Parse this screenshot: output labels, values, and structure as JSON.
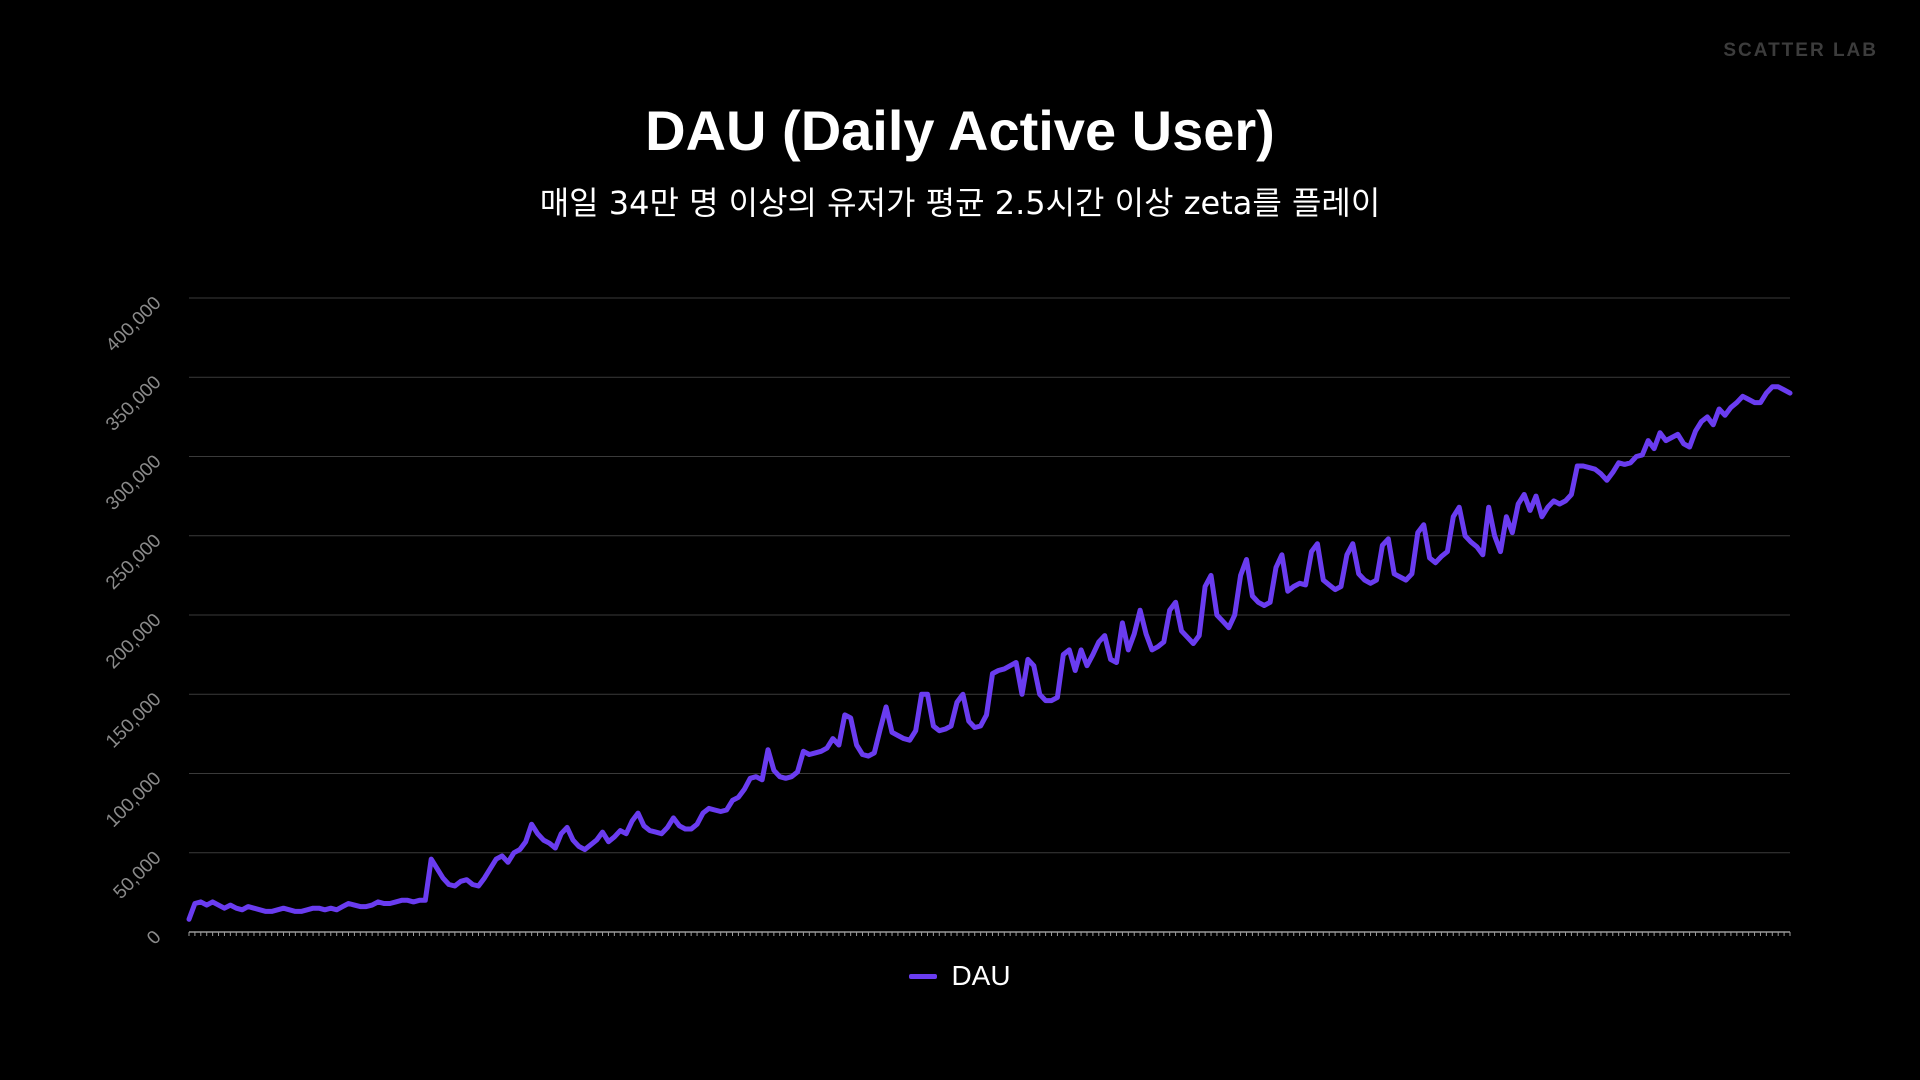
{
  "brand": "SCATTER LAB",
  "colors": {
    "background": "#000000",
    "line": "#6a3cf0",
    "grid": "#3a3a3a",
    "tick": "#8a8a8a"
  },
  "chart_data": {
    "type": "line",
    "title": "DAU (Daily Active User)",
    "subtitle": "매일 34만 명 이상의 유저가 평균 2.5시간 이상 zeta를 플레이",
    "xlabel": "",
    "ylabel": "",
    "ylim": [
      0,
      400000
    ],
    "yticks": [
      0,
      50000,
      100000,
      150000,
      200000,
      250000,
      300000,
      350000,
      400000
    ],
    "ytick_labels": [
      "0",
      "50,000",
      "100,000",
      "150,000",
      "200,000",
      "250,000",
      "300,000",
      "350,000",
      "400,000"
    ],
    "grid": true,
    "legend": "bottom-center",
    "series": [
      {
        "name": "DAU",
        "values": [
          8000,
          18000,
          19000,
          17000,
          19000,
          17000,
          15000,
          17000,
          15000,
          14000,
          16000,
          15000,
          14000,
          13000,
          13000,
          14000,
          15000,
          14000,
          13000,
          13000,
          14000,
          15000,
          15000,
          14000,
          15000,
          14000,
          16000,
          18000,
          17000,
          16000,
          16000,
          17000,
          19000,
          18000,
          18000,
          19000,
          20000,
          20000,
          19000,
          20000,
          20000,
          46000,
          40000,
          34000,
          30000,
          29000,
          32000,
          33000,
          30000,
          29000,
          34000,
          40000,
          46000,
          48000,
          44000,
          50000,
          52000,
          57000,
          68000,
          62000,
          58000,
          56000,
          53000,
          62000,
          66000,
          58000,
          54000,
          52000,
          55000,
          58000,
          63000,
          57000,
          60000,
          64000,
          62000,
          70000,
          75000,
          67000,
          64000,
          63000,
          62000,
          66000,
          72000,
          67000,
          65000,
          65000,
          68000,
          75000,
          78000,
          77000,
          76000,
          77000,
          83000,
          85000,
          90000,
          97000,
          98000,
          96000,
          115000,
          102000,
          98000,
          97000,
          98000,
          101000,
          114000,
          112000,
          113000,
          114000,
          116000,
          122000,
          118000,
          137000,
          135000,
          118000,
          112000,
          111000,
          113000,
          128000,
          142000,
          126000,
          124000,
          122000,
          121000,
          127000,
          150000,
          150000,
          130000,
          127000,
          128000,
          130000,
          145000,
          150000,
          133000,
          129000,
          130000,
          137000,
          163000,
          165000,
          166000,
          168000,
          170000,
          150000,
          172000,
          168000,
          150000,
          146000,
          146000,
          148000,
          175000,
          178000,
          165000,
          178000,
          168000,
          175000,
          183000,
          187000,
          172000,
          170000,
          195000,
          178000,
          188000,
          203000,
          188000,
          178000,
          180000,
          183000,
          203000,
          208000,
          190000,
          186000,
          182000,
          187000,
          218000,
          225000,
          200000,
          196000,
          192000,
          200000,
          225000,
          235000,
          212000,
          208000,
          206000,
          208000,
          230000,
          238000,
          215000,
          218000,
          220000,
          219000,
          240000,
          245000,
          222000,
          219000,
          216000,
          218000,
          238000,
          245000,
          226000,
          222000,
          220000,
          222000,
          244000,
          248000,
          226000,
          224000,
          222000,
          226000,
          252000,
          257000,
          236000,
          233000,
          237000,
          240000,
          262000,
          268000,
          250000,
          246000,
          243000,
          238000,
          268000,
          250000,
          240000,
          262000,
          252000,
          270000,
          276000,
          266000,
          275000,
          262000,
          268000,
          272000,
          270000,
          272000,
          276000,
          294000,
          294000,
          293000,
          292000,
          289000,
          285000,
          290000,
          296000,
          295000,
          296000,
          300000,
          301000,
          310000,
          305000,
          315000,
          310000,
          312000,
          314000,
          308000,
          306000,
          316000,
          322000,
          325000,
          320000,
          330000,
          326000,
          331000,
          334000,
          338000,
          336000,
          334000,
          334000,
          340000,
          344000,
          344000,
          342000,
          340000
        ]
      }
    ]
  }
}
